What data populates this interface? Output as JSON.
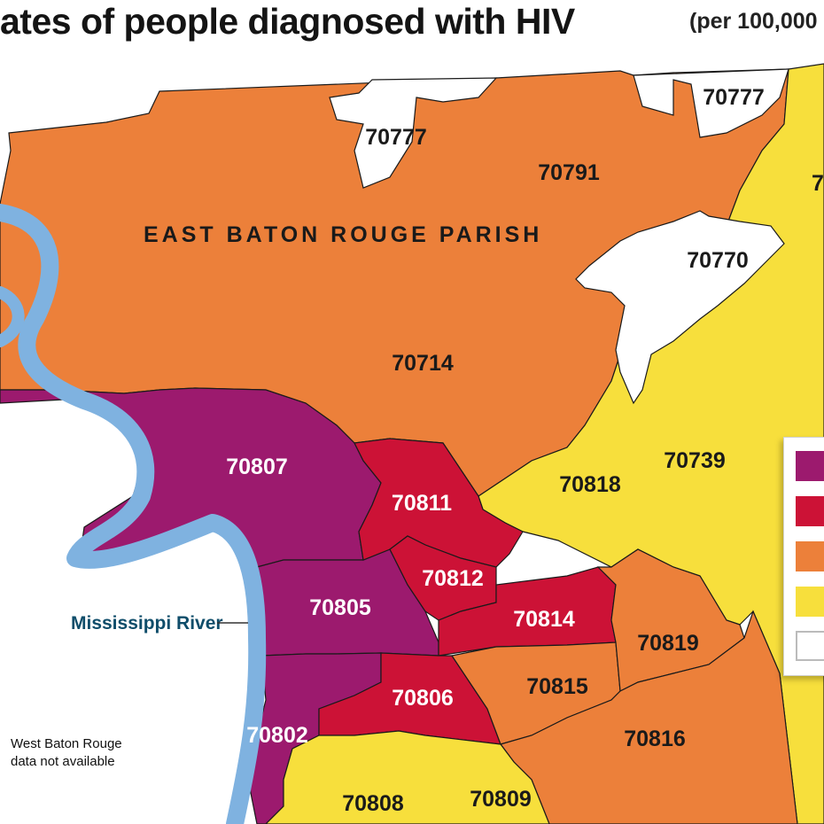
{
  "header": {
    "title": "ates of people diagnosed with HIV",
    "subtitle": "(per 100,000"
  },
  "map": {
    "parish_label": "EAST BATON ROUGE PARISH",
    "river_label": "Mississippi River",
    "note_lines": [
      "West Baton Rouge",
      "data not available"
    ],
    "partial_label": "7",
    "colors": {
      "purple": "#9c1a6e",
      "red": "#cc1236",
      "orange": "#ec803a",
      "yellow": "#f7df3c",
      "white": "#ffffff",
      "river": "#7fb2e0"
    },
    "zips": [
      {
        "code": "70777",
        "category": "white"
      },
      {
        "code": "70777",
        "category": "white"
      },
      {
        "code": "70791",
        "category": "orange"
      },
      {
        "code": "70770",
        "category": "white"
      },
      {
        "code": "70714",
        "category": "orange"
      },
      {
        "code": "70807",
        "category": "purple"
      },
      {
        "code": "70811",
        "category": "red"
      },
      {
        "code": "70818",
        "category": "yellow"
      },
      {
        "code": "70739",
        "category": "yellow"
      },
      {
        "code": "70812",
        "category": "red"
      },
      {
        "code": "70805",
        "category": "purple"
      },
      {
        "code": "70814",
        "category": "red"
      },
      {
        "code": "70819",
        "category": "orange"
      },
      {
        "code": "70806",
        "category": "red"
      },
      {
        "code": "70815",
        "category": "orange"
      },
      {
        "code": "70816",
        "category": "orange"
      },
      {
        "code": "70802",
        "category": "purple"
      },
      {
        "code": "70808",
        "category": "yellow"
      },
      {
        "code": "70809",
        "category": "yellow"
      }
    ]
  },
  "legend": {
    "swatches": [
      "purple",
      "red",
      "orange",
      "yellow",
      "white"
    ]
  }
}
